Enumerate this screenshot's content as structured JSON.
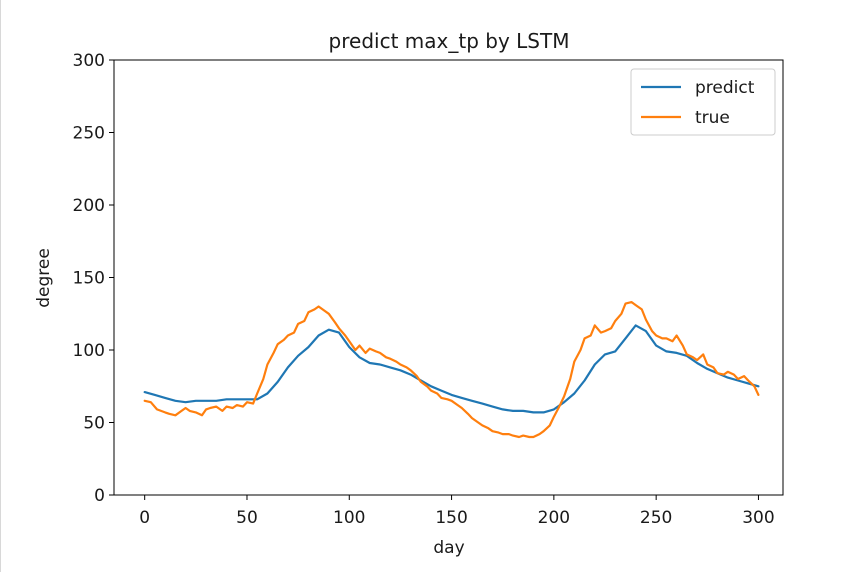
{
  "chart_data": {
    "type": "line",
    "title": "predict max_tp by LSTM",
    "xlabel": "day",
    "ylabel": "degree",
    "xlim": [
      -15,
      312
    ],
    "ylim": [
      0,
      300
    ],
    "xticks": [
      0,
      50,
      100,
      150,
      200,
      250,
      300
    ],
    "yticks": [
      0,
      50,
      100,
      150,
      200,
      250,
      300
    ],
    "grid": false,
    "legend_position": "top-right",
    "series": [
      {
        "name": "predict",
        "color": "#1f77b4",
        "x": [
          0,
          5,
          10,
          15,
          20,
          25,
          30,
          35,
          40,
          45,
          50,
          55,
          60,
          65,
          70,
          75,
          80,
          85,
          90,
          95,
          100,
          105,
          110,
          115,
          120,
          125,
          130,
          135,
          140,
          145,
          150,
          155,
          160,
          165,
          170,
          175,
          180,
          185,
          190,
          195,
          200,
          205,
          210,
          215,
          220,
          225,
          230,
          235,
          240,
          245,
          250,
          255,
          260,
          265,
          270,
          275,
          280,
          285,
          290,
          295,
          300
        ],
        "y": [
          71,
          69,
          67,
          65,
          64,
          65,
          65,
          65,
          66,
          66,
          66,
          66,
          70,
          78,
          88,
          96,
          102,
          110,
          114,
          112,
          102,
          95,
          91,
          90,
          88,
          86,
          83,
          79,
          75,
          72,
          69,
          67,
          65,
          63,
          61,
          59,
          58,
          58,
          57,
          57,
          59,
          64,
          70,
          79,
          90,
          97,
          99,
          108,
          117,
          113,
          103,
          99,
          98,
          96,
          91,
          87,
          84,
          81,
          79,
          77,
          75
        ]
      },
      {
        "name": "true",
        "color": "#ff7f0e",
        "x": [
          0,
          3,
          6,
          10,
          12,
          15,
          18,
          20,
          22,
          25,
          28,
          30,
          32,
          35,
          38,
          40,
          43,
          45,
          48,
          50,
          53,
          55,
          58,
          60,
          63,
          65,
          68,
          70,
          73,
          75,
          78,
          80,
          83,
          85,
          88,
          90,
          93,
          95,
          98,
          100,
          103,
          105,
          108,
          110,
          113,
          115,
          118,
          120,
          123,
          125,
          128,
          130,
          133,
          135,
          138,
          140,
          143,
          145,
          148,
          150,
          153,
          155,
          158,
          160,
          163,
          165,
          168,
          170,
          173,
          175,
          178,
          180,
          183,
          185,
          188,
          190,
          193,
          195,
          198,
          200,
          203,
          205,
          208,
          210,
          213,
          215,
          218,
          220,
          223,
          225,
          228,
          230,
          233,
          235,
          238,
          240,
          243,
          245,
          248,
          250,
          253,
          255,
          258,
          260,
          263,
          265,
          268,
          270,
          273,
          275,
          278,
          280,
          283,
          285,
          288,
          290,
          293,
          295,
          298,
          300
        ],
        "y": [
          65,
          64,
          59,
          57,
          56,
          55,
          58,
          60,
          58,
          57,
          55,
          59,
          60,
          61,
          58,
          61,
          60,
          62,
          61,
          64,
          63,
          70,
          80,
          90,
          98,
          104,
          107,
          110,
          112,
          118,
          120,
          126,
          128,
          130,
          127,
          125,
          119,
          115,
          110,
          106,
          100,
          103,
          98,
          101,
          99,
          98,
          95,
          94,
          92,
          90,
          88,
          86,
          82,
          78,
          75,
          72,
          70,
          67,
          66,
          65,
          62,
          60,
          56,
          53,
          50,
          48,
          46,
          44,
          43,
          42,
          42,
          41,
          40,
          41,
          40,
          40,
          42,
          44,
          48,
          54,
          62,
          68,
          80,
          92,
          100,
          108,
          110,
          117,
          112,
          113,
          115,
          120,
          125,
          132,
          133,
          131,
          128,
          121,
          113,
          110,
          108,
          108,
          106,
          110,
          103,
          97,
          95,
          93,
          97,
          90,
          88,
          84,
          83,
          85,
          83,
          80,
          82,
          79,
          75,
          69
        ]
      }
    ]
  }
}
